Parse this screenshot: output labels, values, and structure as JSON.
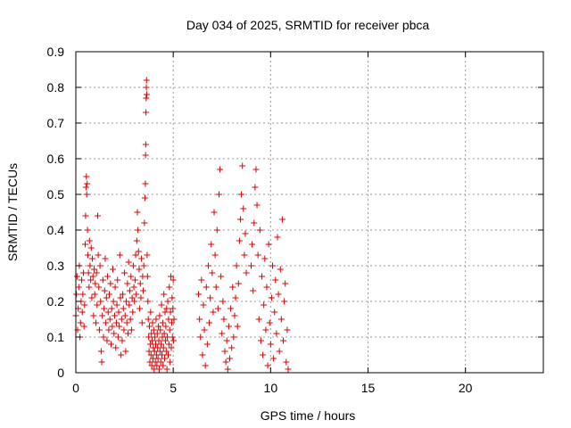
{
  "chart_data": {
    "type": "scatter",
    "title": "Day 034 of 2025, SRMTID for receiver pbca",
    "xlabel": "GPS time / hours",
    "ylabel": "SRMTID / TECUs",
    "xlim": [
      0,
      24
    ],
    "ylim": [
      0,
      0.9
    ],
    "xticks": [
      0,
      5,
      10,
      15,
      20
    ],
    "xtick_labels": [
      "0",
      "5",
      "10",
      "15",
      "20"
    ],
    "yticks": [
      0,
      0.1,
      0.2,
      0.3,
      0.4,
      0.5,
      0.6,
      0.7,
      0.8,
      0.9
    ],
    "ytick_labels": [
      "0",
      "0.1",
      "0.2",
      "0.3",
      "0.4",
      "0.5",
      "0.6",
      "0.7",
      "0.8",
      "0.9"
    ],
    "grid": true,
    "marker": "+",
    "color": "#dd0000",
    "series": [
      {
        "points": [
          [
            0.0,
            0.16
          ],
          [
            0.03,
            0.22
          ],
          [
            0.06,
            0.27
          ],
          [
            0.09,
            0.12
          ],
          [
            0.12,
            0.18
          ],
          [
            0.15,
            0.24
          ],
          [
            0.18,
            0.3
          ],
          [
            0.21,
            0.1
          ],
          [
            0.24,
            0.14
          ],
          [
            0.27,
            0.2
          ],
          [
            0.3,
            0.26
          ],
          [
            0.33,
            0.17
          ],
          [
            0.36,
            0.22
          ],
          [
            0.39,
            0.28
          ],
          [
            0.42,
            0.13
          ],
          [
            0.45,
            0.19
          ],
          [
            0.48,
            0.36
          ],
          [
            0.5,
            0.44
          ],
          [
            0.52,
            0.52
          ],
          [
            0.54,
            0.55
          ],
          [
            0.56,
            0.5
          ],
          [
            0.58,
            0.53
          ],
          [
            0.6,
            0.4
          ],
          [
            0.62,
            0.33
          ],
          [
            0.65,
            0.28
          ],
          [
            0.68,
            0.24
          ],
          [
            0.7,
            0.37
          ],
          [
            0.73,
            0.3
          ],
          [
            0.76,
            0.26
          ],
          [
            0.79,
            0.35
          ],
          [
            0.82,
            0.21
          ],
          [
            0.85,
            0.32
          ],
          [
            0.88,
            0.27
          ],
          [
            0.91,
            0.16
          ],
          [
            0.94,
            0.29
          ],
          [
            0.97,
            0.22
          ],
          [
            1.0,
            0.25
          ],
          [
            1.03,
            0.14
          ],
          [
            1.06,
            0.28
          ],
          [
            1.09,
            0.19
          ],
          [
            1.12,
            0.44
          ],
          [
            1.15,
            0.33
          ],
          [
            1.18,
            0.24
          ],
          [
            1.21,
            0.12
          ],
          [
            1.24,
            0.3
          ],
          [
            1.27,
            0.2
          ],
          [
            1.3,
            0.06
          ],
          [
            1.33,
            0.03
          ],
          [
            1.36,
            0.16
          ],
          [
            1.39,
            0.26
          ],
          [
            1.42,
            0.1
          ],
          [
            1.45,
            0.18
          ],
          [
            1.48,
            0.23
          ],
          [
            1.51,
            0.32
          ],
          [
            1.54,
            0.14
          ],
          [
            1.57,
            0.21
          ],
          [
            1.6,
            0.09
          ],
          [
            1.63,
            0.27
          ],
          [
            1.66,
            0.17
          ],
          [
            1.69,
            0.12
          ],
          [
            1.72,
            0.22
          ],
          [
            1.75,
            0.15
          ],
          [
            1.78,
            0.25
          ],
          [
            1.81,
            0.08
          ],
          [
            1.84,
            0.18
          ],
          [
            1.87,
            0.13
          ],
          [
            1.9,
            0.29
          ],
          [
            1.93,
            0.2
          ],
          [
            1.96,
            0.11
          ],
          [
            1.99,
            0.16
          ],
          [
            2.02,
            0.24
          ],
          [
            2.05,
            0.07
          ],
          [
            2.08,
            0.14
          ],
          [
            2.11,
            0.19
          ],
          [
            2.14,
            0.26
          ],
          [
            2.17,
            0.1
          ],
          [
            2.2,
            0.17
          ],
          [
            2.23,
            0.13
          ],
          [
            2.26,
            0.33
          ],
          [
            2.29,
            0.21
          ],
          [
            2.32,
            0.05
          ],
          [
            2.35,
            0.15
          ],
          [
            2.38,
            0.09
          ],
          [
            2.41,
            0.22
          ],
          [
            2.44,
            0.18
          ],
          [
            2.47,
            0.12
          ],
          [
            2.5,
            0.28
          ],
          [
            2.53,
            0.16
          ],
          [
            2.56,
            0.06
          ],
          [
            2.59,
            0.2
          ],
          [
            2.62,
            0.14
          ],
          [
            2.65,
            0.25
          ],
          [
            2.68,
            0.11
          ],
          [
            2.71,
            0.31
          ],
          [
            2.74,
            0.19
          ],
          [
            2.77,
            0.23
          ],
          [
            2.8,
            0.15
          ],
          [
            2.83,
            0.27
          ],
          [
            2.86,
            0.12
          ],
          [
            2.89,
            0.21
          ],
          [
            2.92,
            0.17
          ],
          [
            2.95,
            0.3
          ],
          [
            2.98,
            0.24
          ],
          [
            3.01,
            0.2
          ],
          [
            3.04,
            0.26
          ],
          [
            3.07,
            0.33
          ],
          [
            3.1,
            0.22
          ],
          [
            3.13,
            0.37
          ],
          [
            3.16,
            0.45
          ],
          [
            3.19,
            0.4
          ],
          [
            3.22,
            0.34
          ],
          [
            3.25,
            0.29
          ],
          [
            3.28,
            0.18
          ],
          [
            3.31,
            0.25
          ],
          [
            3.34,
            0.21
          ],
          [
            3.37,
            0.32
          ],
          [
            3.4,
            0.14
          ],
          [
            3.43,
            0.27
          ],
          [
            3.46,
            0.23
          ],
          [
            3.49,
            0.3
          ],
          [
            3.52,
            0.42
          ],
          [
            3.55,
            0.49
          ],
          [
            3.57,
            0.53
          ],
          [
            3.58,
            0.61
          ],
          [
            3.59,
            0.64
          ],
          [
            3.6,
            0.73
          ],
          [
            3.61,
            0.77
          ],
          [
            3.62,
            0.8
          ],
          [
            3.63,
            0.82
          ],
          [
            3.64,
            0.78
          ],
          [
            3.66,
            0.33
          ],
          [
            3.68,
            0.27
          ],
          [
            3.7,
            0.2
          ],
          [
            3.72,
            0.15
          ],
          [
            3.74,
            0.1
          ],
          [
            3.76,
            0.06
          ],
          [
            3.78,
            0.13
          ],
          [
            3.8,
            0.03
          ],
          [
            3.82,
            0.08
          ],
          [
            3.84,
            0.17
          ],
          [
            3.86,
            0.05
          ],
          [
            3.88,
            0.11
          ],
          [
            3.9,
            0.02
          ],
          [
            3.92,
            0.09
          ],
          [
            3.94,
            0.14
          ],
          [
            3.96,
            0.04
          ],
          [
            3.98,
            0.07
          ],
          [
            4.0,
            0.12
          ],
          [
            4.02,
            0.01
          ],
          [
            4.04,
            0.06
          ],
          [
            4.06,
            0.1
          ],
          [
            4.08,
            0.03
          ],
          [
            4.1,
            0.08
          ],
          [
            4.12,
            0.15
          ],
          [
            4.14,
            0.05
          ],
          [
            4.16,
            0.02
          ],
          [
            4.18,
            0.11
          ],
          [
            4.2,
            0.07
          ],
          [
            4.22,
            0.04
          ],
          [
            4.24,
            0.13
          ],
          [
            4.26,
            0.09
          ],
          [
            4.28,
            0.01
          ],
          [
            4.3,
            0.16
          ],
          [
            4.32,
            0.06
          ],
          [
            4.34,
            0.12
          ],
          [
            4.36,
            0.03
          ],
          [
            4.38,
            0.08
          ],
          [
            4.4,
            0.19
          ],
          [
            4.42,
            0.05
          ],
          [
            4.44,
            0.1
          ],
          [
            4.46,
            0.14
          ],
          [
            4.48,
            0.02
          ],
          [
            4.5,
            0.07
          ],
          [
            4.52,
            0.22
          ],
          [
            4.54,
            0.11
          ],
          [
            4.56,
            0.04
          ],
          [
            4.58,
            0.17
          ],
          [
            4.6,
            0.09
          ],
          [
            4.62,
            0.13
          ],
          [
            4.64,
            0.06
          ],
          [
            4.66,
            0.18
          ],
          [
            4.68,
            0.01
          ],
          [
            4.7,
            0.1
          ],
          [
            4.72,
            0.2
          ],
          [
            4.74,
            0.05
          ],
          [
            4.76,
            0.15
          ],
          [
            4.78,
            0.08
          ],
          [
            4.8,
            0.24
          ],
          [
            4.82,
            0.12
          ],
          [
            4.84,
            0.03
          ],
          [
            4.86,
            0.17
          ],
          [
            4.88,
            0.27
          ],
          [
            4.9,
            0.07
          ],
          [
            4.92,
            0.14
          ],
          [
            4.94,
            0.21
          ],
          [
            4.96,
            0.1
          ],
          [
            4.98,
            0.18
          ],
          [
            5.0,
            0.26
          ],
          [
            5.02,
            0.09
          ],
          [
            5.04,
            0.15
          ],
          [
            6.3,
            0.22
          ],
          [
            6.35,
            0.15
          ],
          [
            6.4,
            0.1
          ],
          [
            6.45,
            0.26
          ],
          [
            6.5,
            0.05
          ],
          [
            6.55,
            0.19
          ],
          [
            6.6,
            0.12
          ],
          [
            6.65,
            0.02
          ],
          [
            6.7,
            0.24
          ],
          [
            6.75,
            0.08
          ],
          [
            6.8,
            0.3
          ],
          [
            6.85,
            0.14
          ],
          [
            6.9,
            0.21
          ],
          [
            6.95,
            0.36
          ],
          [
            7.0,
            0.28
          ],
          [
            7.05,
            0.17
          ],
          [
            7.1,
            0.45
          ],
          [
            7.15,
            0.33
          ],
          [
            7.2,
            0.24
          ],
          [
            7.25,
            0.4
          ],
          [
            7.3,
            0.18
          ],
          [
            7.35,
            0.5
          ],
          [
            7.4,
            0.57
          ],
          [
            7.45,
            0.27
          ],
          [
            7.5,
            0.11
          ],
          [
            7.55,
            0.2
          ],
          [
            7.6,
            0.15
          ],
          [
            7.65,
            0.06
          ],
          [
            7.7,
            0.03
          ],
          [
            7.75,
            0.09
          ],
          [
            7.8,
            0.01
          ],
          [
            7.85,
            0.13
          ],
          [
            7.9,
            0.04
          ],
          [
            7.95,
            0.18
          ],
          [
            8.0,
            0.07
          ],
          [
            8.05,
            0.24
          ],
          [
            8.1,
            0.1
          ],
          [
            8.15,
            0.16
          ],
          [
            8.2,
            0.21
          ],
          [
            8.25,
            0.3
          ],
          [
            8.3,
            0.13
          ],
          [
            8.35,
            0.25
          ],
          [
            8.4,
            0.37
          ],
          [
            8.45,
            0.43
          ],
          [
            8.5,
            0.5
          ],
          [
            8.55,
            0.58
          ],
          [
            8.6,
            0.46
          ],
          [
            8.65,
            0.33
          ],
          [
            8.7,
            0.39
          ],
          [
            8.75,
            0.28
          ],
          [
            9.0,
            0.3
          ],
          [
            9.05,
            0.36
          ],
          [
            9.1,
            0.23
          ],
          [
            9.15,
            0.42
          ],
          [
            9.2,
            0.52
          ],
          [
            9.25,
            0.57
          ],
          [
            9.3,
            0.47
          ],
          [
            9.35,
            0.33
          ],
          [
            9.4,
            0.15
          ],
          [
            9.45,
            0.4
          ],
          [
            9.5,
            0.09
          ],
          [
            9.55,
            0.27
          ],
          [
            9.6,
            0.05
          ],
          [
            9.65,
            0.19
          ],
          [
            9.7,
            0.32
          ],
          [
            9.75,
            0.12
          ],
          [
            9.8,
            0.24
          ],
          [
            9.85,
            0.02
          ],
          [
            9.9,
            0.36
          ],
          [
            9.95,
            0.14
          ],
          [
            10.0,
            0.08
          ],
          [
            10.05,
            0.21
          ],
          [
            10.1,
            0.3
          ],
          [
            10.15,
            0.04
          ],
          [
            10.2,
            0.17
          ],
          [
            10.25,
            0.26
          ],
          [
            10.3,
            0.11
          ],
          [
            10.35,
            0.38
          ],
          [
            10.4,
            0.22
          ],
          [
            10.45,
            0.06
          ],
          [
            10.5,
            0.29
          ],
          [
            10.55,
            0.15
          ],
          [
            10.6,
            0.43
          ],
          [
            10.65,
            0.09
          ],
          [
            10.7,
            0.2
          ],
          [
            10.75,
            0.25
          ],
          [
            10.8,
            0.03
          ],
          [
            10.85,
            0.12
          ],
          [
            10.9,
            0.01
          ]
        ]
      }
    ]
  }
}
